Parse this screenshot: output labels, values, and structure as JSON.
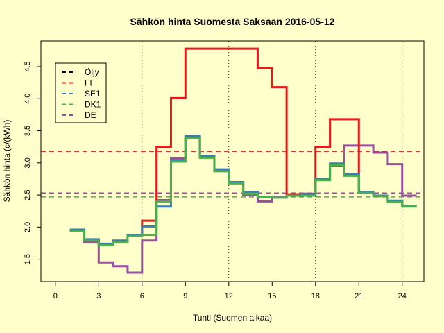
{
  "chart_data": {
    "type": "line",
    "title": "Sähkön hinta Suomesta Saksaan 2016-05-12",
    "xlabel": "Tunti (Suomen aikaa)",
    "ylabel": "Sähkön hinta (c/(kWh)",
    "xlim": [
      -1,
      25.5
    ],
    "ylim": [
      1.15,
      4.9
    ],
    "x_ticks": [
      0,
      3,
      6,
      9,
      12,
      15,
      18,
      21,
      24
    ],
    "y_ticks": [
      1.5,
      2.0,
      2.5,
      3.0,
      3.5,
      4.0,
      4.5
    ],
    "y_tick_labels": [
      "1.5",
      "2.0",
      "2.5",
      "3.0",
      "3.5",
      "4.0",
      "4.5"
    ],
    "vlines": [
      6,
      12,
      18,
      24
    ],
    "legend_position": "top-left",
    "series": [
      {
        "name": "Öljy",
        "color": "#000000",
        "style": "dashed",
        "values": []
      },
      {
        "name": "FI",
        "color": "#e41a1c",
        "style": "solid",
        "x": [
          1,
          2,
          3,
          4,
          5,
          6,
          7,
          8,
          9,
          10,
          11,
          12,
          13,
          14,
          15,
          16,
          17,
          18,
          19,
          20,
          21,
          22,
          23,
          24
        ],
        "values": [
          1.95,
          1.8,
          1.73,
          1.78,
          1.87,
          2.1,
          3.25,
          4.01,
          4.78,
          4.78,
          4.78,
          4.78,
          4.78,
          4.48,
          4.18,
          2.51,
          2.51,
          3.25,
          3.68,
          3.68,
          2.53,
          2.49,
          2.41,
          2.33
        ]
      },
      {
        "name": "SE1",
        "color": "#377eb8",
        "style": "solid",
        "x": [
          1,
          2,
          3,
          4,
          5,
          6,
          7,
          8,
          9,
          10,
          11,
          12,
          13,
          14,
          15,
          16,
          17,
          18,
          19,
          20,
          21,
          22,
          23,
          24
        ],
        "values": [
          1.96,
          1.81,
          1.74,
          1.79,
          1.88,
          2.01,
          2.32,
          3.04,
          3.42,
          3.1,
          2.9,
          2.7,
          2.55,
          2.47,
          2.46,
          2.49,
          2.51,
          2.75,
          2.99,
          2.82,
          2.55,
          2.49,
          2.41,
          2.33
        ]
      },
      {
        "name": "DK1",
        "color": "#4daf4a",
        "style": "solid",
        "x": [
          1,
          2,
          3,
          4,
          5,
          6,
          7,
          8,
          9,
          10,
          11,
          12,
          13,
          14,
          15,
          16,
          17,
          18,
          19,
          20,
          21,
          22,
          23,
          24
        ],
        "values": [
          1.94,
          1.79,
          1.72,
          1.77,
          1.86,
          1.88,
          2.4,
          3.02,
          3.39,
          3.08,
          2.87,
          2.68,
          2.52,
          2.47,
          2.46,
          2.49,
          2.49,
          2.73,
          2.97,
          2.8,
          2.53,
          2.48,
          2.39,
          2.32
        ]
      },
      {
        "name": "DE",
        "color": "#984ea3",
        "style": "solid",
        "x": [
          1,
          2,
          3,
          4,
          5,
          6,
          7,
          8,
          9,
          10,
          11,
          12,
          13,
          14,
          15,
          16,
          17,
          18,
          19,
          20,
          21,
          22,
          23,
          24
        ],
        "values": [
          1.95,
          1.77,
          1.45,
          1.39,
          1.29,
          1.79,
          2.42,
          3.07,
          3.39,
          3.09,
          2.88,
          2.7,
          2.5,
          2.4,
          2.47,
          2.49,
          2.52,
          2.74,
          2.96,
          3.27,
          3.27,
          3.16,
          2.98,
          2.49
        ]
      }
    ],
    "hlines": [
      {
        "series": "FI",
        "y": 3.18,
        "color": "#e41a1c"
      },
      {
        "series": "DE",
        "y": 2.53,
        "color": "#984ea3"
      },
      {
        "series": "DK1",
        "y": 2.47,
        "color": "#4daf4a"
      }
    ]
  }
}
